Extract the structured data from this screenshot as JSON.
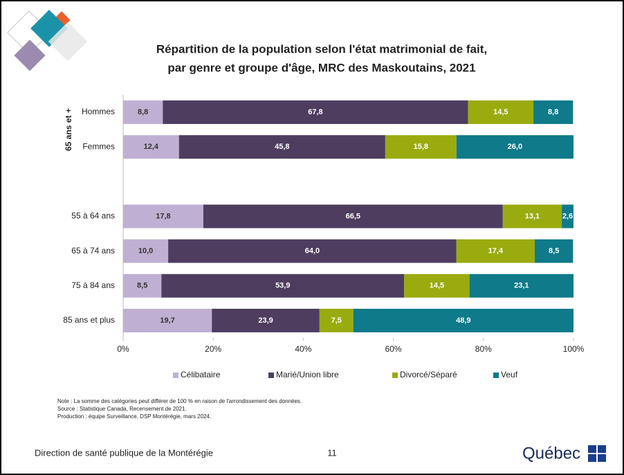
{
  "chart_data": {
    "type": "stacked_bar_horizontal",
    "title": [
      "Répartition de la population selon l'état matrimonial de fait,",
      "par genre et groupe d'âge, MRC des Maskoutains, 2021"
    ],
    "group_label": "65 ans et +",
    "categories": [
      "Hommes",
      "Femmes",
      null,
      "55 à 64 ans",
      "65 à 74 ans",
      "75 à 84 ans",
      "85 ans et plus"
    ],
    "series": [
      {
        "name": "Célibataire",
        "color": "#bfb0d3",
        "values": [
          8.8,
          12.4,
          null,
          17.8,
          10.0,
          8.5,
          19.7
        ],
        "value_labels": [
          "8,8",
          "12,4",
          null,
          "17,8",
          "10,0",
          "8,5",
          "19,7"
        ]
      },
      {
        "name": "Marié/Union libre",
        "color": "#4e3d5f",
        "values": [
          67.8,
          45.8,
          null,
          66.5,
          64.0,
          53.9,
          23.9
        ],
        "value_labels": [
          "67,8",
          "45,8",
          null,
          "66,5",
          "64,0",
          "53,9",
          "23,9"
        ]
      },
      {
        "name": "Divorcé/Séparé",
        "color": "#9aab0f",
        "values": [
          14.5,
          15.8,
          null,
          13.1,
          17.4,
          14.5,
          7.5
        ],
        "value_labels": [
          "14,5",
          "15,8",
          null,
          "13,1",
          "17,4",
          "14,5",
          "7,5"
        ]
      },
      {
        "name": "Veuf",
        "color": "#0f7a8a",
        "values": [
          8.8,
          26.0,
          null,
          2.6,
          8.5,
          23.1,
          48.9
        ],
        "value_labels": [
          "8,8",
          "26,0",
          null,
          "2,6",
          "8,5",
          "23,1",
          "48,9"
        ]
      }
    ],
    "xlim": [
      0,
      100
    ],
    "xticks": [
      {
        "value": 0,
        "label": "0%"
      },
      {
        "value": 20,
        "label": "20%"
      },
      {
        "value": 40,
        "label": "40%"
      },
      {
        "value": 60,
        "label": "60%"
      },
      {
        "value": 80,
        "label": "80%"
      },
      {
        "value": 100,
        "label": "100%"
      }
    ],
    "legend": "bottom",
    "notes": [
      "Note : La somme des catégories peut différer de 100 % en raison de l'arrondissement des données.",
      "Source : Statistique Canada, Recensement de 2021.",
      "Production : équipe Surveillance, DSP Montérégie, mars 2024."
    ]
  },
  "footer": {
    "organization": "Direction de santé publique de la Montérégie",
    "page": "11",
    "logo": "Québec"
  }
}
